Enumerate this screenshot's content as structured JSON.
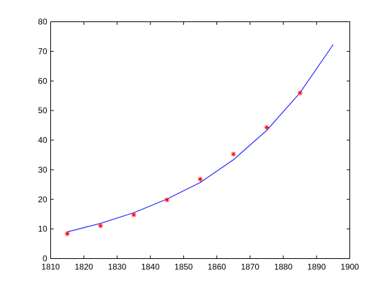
{
  "chart_data": {
    "type": "line",
    "title": "",
    "xlabel": "",
    "ylabel": "",
    "xlim": [
      1810,
      1900
    ],
    "ylim": [
      0,
      80
    ],
    "xticks": [
      1810,
      1820,
      1830,
      1840,
      1850,
      1860,
      1870,
      1880,
      1890,
      1900
    ],
    "yticks": [
      0,
      10,
      20,
      30,
      40,
      50,
      60,
      70,
      80
    ],
    "grid": false,
    "legend": "none",
    "series": [
      {
        "kind": "scatter",
        "marker": "asterisk",
        "color": "#ff0000",
        "x": [
          1815,
          1825,
          1835,
          1845,
          1855,
          1865,
          1875,
          1885
        ],
        "y": [
          8.4,
          11.1,
          14.8,
          19.8,
          26.8,
          35.3,
          44.3,
          55.9
        ]
      },
      {
        "kind": "line",
        "color": "#0000ff",
        "x": [
          1815,
          1825,
          1835,
          1845,
          1855,
          1865,
          1875,
          1885,
          1895
        ],
        "y": [
          9.0,
          11.9,
          15.5,
          20.1,
          25.7,
          33.4,
          43.3,
          56.0,
          72.3
        ]
      }
    ]
  }
}
